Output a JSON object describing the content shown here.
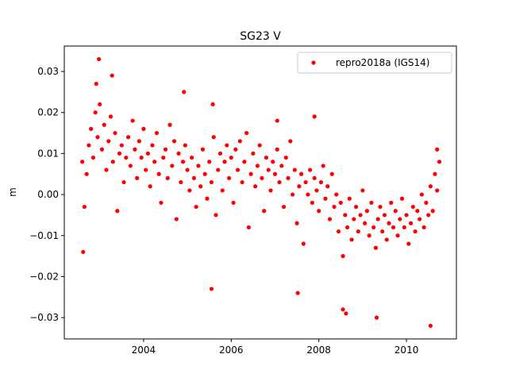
{
  "chart_data": {
    "type": "scatter",
    "title": "SG23 V",
    "y_label": "m",
    "xlim": [
      2002.19,
      2011.14
    ],
    "ylim": [
      -0.0352,
      0.0362
    ],
    "xticks": [
      2004,
      2006,
      2008,
      2010
    ],
    "yticks": [
      {
        "value": -0.03,
        "label": "−0.03"
      },
      {
        "value": -0.02,
        "label": "−0.02"
      },
      {
        "value": -0.01,
        "label": "−0.01"
      },
      {
        "value": 0,
        "label": "0.00"
      },
      0.01,
      0.02,
      0.03
    ],
    "legend": "upper right",
    "series": [
      {
        "name": "repro2018a (IGS14)",
        "color": "#ff0000",
        "x": [
          2002.6,
          2002.65,
          2002.7,
          2002.75,
          2002.8,
          2002.85,
          2002.9,
          2002.95,
          2003,
          2003.05,
          2003.1,
          2003.15,
          2003.2,
          2003.25,
          2003.3,
          2003.35,
          2003.4,
          2003.45,
          2003.5,
          2003.55,
          2003.6,
          2003.65,
          2003.7,
          2003.75,
          2003.8,
          2003.85,
          2003.9,
          2003.95,
          2004,
          2004.05,
          2004.1,
          2004.15,
          2004.2,
          2004.25,
          2004.3,
          2004.35,
          2004.4,
          2004.45,
          2004.5,
          2004.55,
          2004.6,
          2004.65,
          2004.7,
          2004.75,
          2004.8,
          2004.85,
          2004.9,
          2004.95,
          2005,
          2005.05,
          2005.1,
          2005.15,
          2005.2,
          2005.25,
          2005.3,
          2005.35,
          2005.4,
          2005.45,
          2005.5,
          2005.55,
          2005.6,
          2005.65,
          2005.7,
          2005.75,
          2005.8,
          2005.85,
          2005.9,
          2005.95,
          2006,
          2006.05,
          2006.1,
          2006.15,
          2006.2,
          2006.25,
          2006.3,
          2006.35,
          2006.4,
          2006.45,
          2006.5,
          2006.55,
          2006.6,
          2006.65,
          2006.7,
          2006.75,
          2006.8,
          2006.85,
          2006.9,
          2006.95,
          2007,
          2007.05,
          2007.1,
          2007.15,
          2007.2,
          2007.25,
          2007.3,
          2007.35,
          2007.4,
          2007.45,
          2007.5,
          2007.55,
          2007.6,
          2007.65,
          2007.7,
          2007.75,
          2007.8,
          2007.85,
          2007.9,
          2007.95,
          2008,
          2008.05,
          2008.1,
          2008.15,
          2008.2,
          2008.25,
          2008.3,
          2008.35,
          2008.4,
          2008.45,
          2008.5,
          2008.55,
          2008.6,
          2008.65,
          2008.7,
          2008.75,
          2008.8,
          2008.85,
          2008.9,
          2008.95,
          2009,
          2009.05,
          2009.1,
          2009.15,
          2009.2,
          2009.25,
          2009.3,
          2009.35,
          2009.4,
          2009.45,
          2009.5,
          2009.55,
          2009.6,
          2009.65,
          2009.7,
          2009.75,
          2009.8,
          2009.85,
          2009.9,
          2009.95,
          2010,
          2010.05,
          2010.1,
          2010.15,
          2010.2,
          2010.25,
          2010.3,
          2010.35,
          2010.4,
          2010.45,
          2010.5,
          2010.55,
          2010.6,
          2010.65,
          2010.7,
          2010.75,
          2002.62,
          2002.98,
          2003.28,
          2004.92,
          2005.58,
          2005.55,
          2007.52,
          2008.55,
          2008.62,
          2009.32,
          2010.55,
          2010.7,
          2002.92,
          2007.9,
          2007.05
        ],
        "values": [
          0.008,
          -0.003,
          0.005,
          0.012,
          0.016,
          0.009,
          0.02,
          0.014,
          0.022,
          0.011,
          0.017,
          0.006,
          0.013,
          0.019,
          0.008,
          0.015,
          -0.004,
          0.01,
          0.012,
          0.003,
          0.009,
          0.014,
          0.007,
          0.018,
          0.011,
          0.004,
          0.013,
          0.009,
          0.016,
          0.006,
          0.01,
          0.002,
          0.012,
          0.008,
          0.015,
          0.005,
          -0.002,
          0.009,
          0.011,
          0.004,
          0.017,
          0.007,
          0.013,
          -0.006,
          0.01,
          0.003,
          0.008,
          0.012,
          0.006,
          0.001,
          0.009,
          0.004,
          -0.003,
          0.007,
          0.002,
          0.011,
          0.005,
          -0.001,
          0.008,
          0.003,
          0.014,
          -0.005,
          0.006,
          0.01,
          0.001,
          0.008,
          0.012,
          0.004,
          0.009,
          -0.002,
          0.011,
          0.006,
          0.013,
          0.003,
          0.008,
          0.015,
          -0.008,
          0.005,
          0.01,
          0.002,
          0.007,
          0.012,
          0.004,
          -0.004,
          0.009,
          0.006,
          0.001,
          0.008,
          0.005,
          0.011,
          0.003,
          0.007,
          -0.003,
          0.009,
          0.004,
          0.013,
          0,
          0.006,
          -0.007,
          0.002,
          0.005,
          -0.012,
          0.003,
          0,
          0.006,
          -0.002,
          0.004,
          0.001,
          -0.004,
          0.003,
          0.007,
          -0.001,
          0.002,
          -0.006,
          0.005,
          -0.003,
          0,
          -0.009,
          -0.002,
          -0.015,
          -0.005,
          -0.008,
          -0.001,
          -0.011,
          -0.006,
          -0.003,
          -0.009,
          -0.005,
          0.001,
          -0.007,
          -0.004,
          -0.01,
          -0.002,
          -0.008,
          -0.013,
          -0.006,
          -0.003,
          -0.009,
          -0.005,
          -0.011,
          -0.007,
          -0.002,
          -0.008,
          -0.004,
          -0.01,
          -0.006,
          -0.001,
          -0.008,
          -0.005,
          -0.012,
          -0.007,
          -0.003,
          -0.009,
          -0.004,
          -0.006,
          0,
          -0.008,
          -0.002,
          -0.005,
          0.002,
          -0.004,
          0.005,
          0.001,
          0.008,
          -0.014,
          0.033,
          0.029,
          0.025,
          0.022,
          -0.023,
          -0.024,
          -0.028,
          -0.029,
          -0.03,
          -0.032,
          0.011,
          0.027,
          0.019,
          0.018
        ]
      }
    ]
  }
}
